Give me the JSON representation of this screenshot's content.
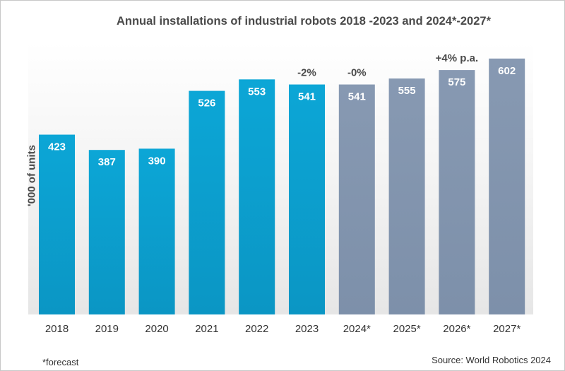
{
  "chart_data": {
    "type": "bar",
    "title": "Annual installations of industrial robots 2018  -2023 and 2024*-2027*",
    "ylabel": "'000 of units",
    "xlabel": "",
    "categories": [
      "2018",
      "2019",
      "2020",
      "2021",
      "2022",
      "2023",
      "2024*",
      "2025*",
      "2026*",
      "2027*"
    ],
    "values": [
      423,
      387,
      390,
      526,
      553,
      541,
      541,
      555,
      575,
      602
    ],
    "forecast": [
      false,
      false,
      false,
      false,
      false,
      false,
      true,
      true,
      true,
      true
    ],
    "colors": {
      "actual": "#0aa0d0",
      "forecast": "#8296b0"
    },
    "annotations": [
      {
        "category": "2023",
        "text": "-2%"
      },
      {
        "category": "2024*",
        "text": "-0%"
      },
      {
        "category": "2026*",
        "text": "+4% p.a."
      }
    ],
    "footnote": "*forecast",
    "source": "Source: World Robotics 2024",
    "ylim": [
      0,
      640
    ],
    "grid": false
  }
}
